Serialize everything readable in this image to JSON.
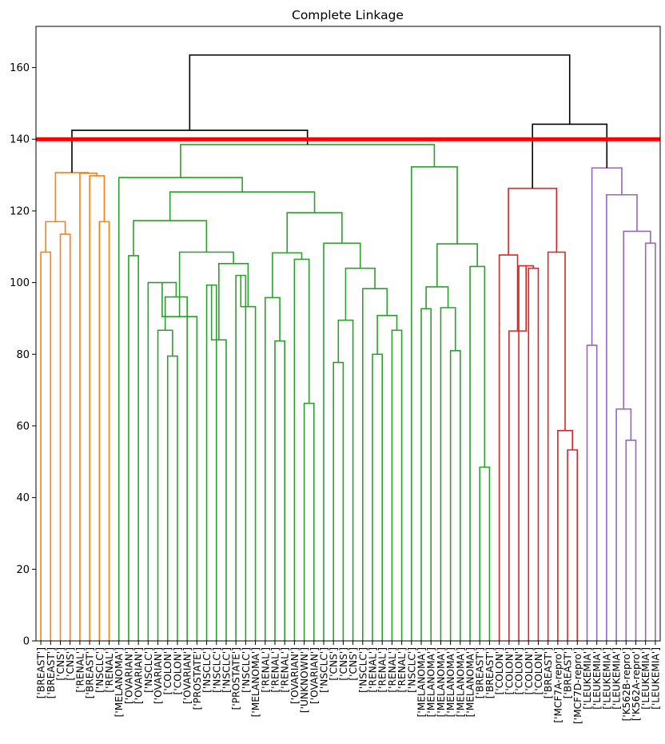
{
  "chart_data": {
    "type": "dendrogram",
    "title": "Complete Linkage",
    "xlabel": "",
    "ylabel": "",
    "ylim": [
      0,
      171.5
    ],
    "yticks": [
      0,
      20,
      40,
      60,
      80,
      100,
      120,
      140,
      160
    ],
    "grid": false,
    "cut_height": 140,
    "cut_color": "#ff0000",
    "colors": {
      "C0": "#000000",
      "C1": "#ff7f0e",
      "C2": "#2ca02c",
      "C3": "#d62728",
      "C4": "#9467bd"
    },
    "leaves": [
      "['BREAST']",
      "['BREAST']",
      "['CNS']",
      "['CNS']",
      "['RENAL']",
      "['BREAST']",
      "['NSCLC']",
      "['RENAL']",
      "['MELANOMA']",
      "['OVARIAN']",
      "['OVARIAN']",
      "['NSCLC']",
      "['OVARIAN']",
      "['COLON']",
      "['COLON']",
      "['OVARIAN']",
      "['PROSTATE']",
      "['NSCLC']",
      "['NSCLC']",
      "['NSCLC']",
      "['PROSTATE']",
      "['NSCLC']",
      "['MELANOMA']",
      "['RENAL']",
      "['RENAL']",
      "['RENAL']",
      "['OVARIAN']",
      "['UNKNOWN']",
      "['OVARIAN']",
      "['NSCLC']",
      "['CNS']",
      "['CNS']",
      "['CNS']",
      "['NSCLC']",
      "['RENAL']",
      "['RENAL']",
      "['RENAL']",
      "['RENAL']",
      "['NSCLC']",
      "['MELANOMA']",
      "['MELANOMA']",
      "['MELANOMA']",
      "['MELANOMA']",
      "['MELANOMA']",
      "['MELANOMA']",
      "['BREAST']",
      "['BREAST']",
      "['COLON']",
      "['COLON']",
      "['COLON']",
      "['COLON']",
      "['COLON']",
      "['BREAST']",
      "['MCF7A-repro']",
      "['BREAST']",
      "['MCF7D-repro']",
      "['LEUKEMIA']",
      "['LEUKEMIA']",
      "['LEUKEMIA']",
      "['LEUKEMIA']",
      "['K562B-repro']",
      "['K562A-repro']",
      "['LEUKEMIA']",
      "['LEUKEMIA']"
    ],
    "links": [
      {
        "left": 0,
        "right": 1,
        "height": 108.5,
        "color": "C1"
      },
      {
        "left": 2,
        "right": 3,
        "height": 113.5,
        "color": "C1"
      },
      {
        "left": 64,
        "right": 65,
        "height": 117.0,
        "color": "C1"
      },
      {
        "left": 6,
        "right": 7,
        "height": 117.0,
        "color": "C1"
      },
      {
        "left": 5,
        "right": 67,
        "height": 129.8,
        "color": "C1"
      },
      {
        "left": 4,
        "right": 68,
        "height": 130.5,
        "color": "C1"
      },
      {
        "left": 66,
        "right": 69,
        "height": 130.7,
        "color": "C1"
      },
      {
        "left": 13,
        "right": 14,
        "height": 79.5,
        "color": "C2"
      },
      {
        "left": 12,
        "right": 71,
        "height": 86.7,
        "color": "C2"
      },
      {
        "left": 72,
        "right": 15,
        "height": 96.0,
        "color": "C2"
      },
      {
        "left": 11,
        "right": 73,
        "height": 100.0,
        "color": "C2"
      },
      {
        "left": 74,
        "right": 16,
        "height": 90.5,
        "color": "C2"
      },
      {
        "left": 17,
        "right": 18,
        "height": 99.3,
        "color": "C2"
      },
      {
        "left": 76,
        "right": 19,
        "height": 84.0,
        "color": "C2"
      },
      {
        "left": 20,
        "right": 21,
        "height": 102.0,
        "color": "C2"
      },
      {
        "left": 78,
        "right": 22,
        "height": 93.3,
        "color": "C2"
      },
      {
        "left": 77,
        "right": 79,
        "height": 105.3,
        "color": "C2"
      },
      {
        "left": 75,
        "right": 80,
        "height": 108.5,
        "color": "C2"
      },
      {
        "left": 9,
        "right": 10,
        "height": 107.5,
        "color": "C2"
      },
      {
        "left": 82,
        "right": 81,
        "height": 117.3,
        "color": "C2"
      },
      {
        "left": 24,
        "right": 25,
        "height": 83.7,
        "color": "C2"
      },
      {
        "left": 23,
        "right": 84,
        "height": 95.8,
        "color": "C2"
      },
      {
        "left": 27,
        "right": 28,
        "height": 66.3,
        "color": "C2"
      },
      {
        "left": 26,
        "right": 86,
        "height": 106.5,
        "color": "C2"
      },
      {
        "left": 85,
        "right": 87,
        "height": 108.3,
        "color": "C2"
      },
      {
        "left": 30,
        "right": 31,
        "height": 77.7,
        "color": "C2"
      },
      {
        "left": 89,
        "right": 32,
        "height": 89.5,
        "color": "C2"
      },
      {
        "left": 34,
        "right": 35,
        "height": 80.0,
        "color": "C2"
      },
      {
        "left": 36,
        "right": 37,
        "height": 86.7,
        "color": "C2"
      },
      {
        "left": 91,
        "right": 92,
        "height": 90.8,
        "color": "C2"
      },
      {
        "left": 33,
        "right": 93,
        "height": 98.3,
        "color": "C2"
      },
      {
        "left": 90,
        "right": 94,
        "height": 104.0,
        "color": "C2"
      },
      {
        "left": 29,
        "right": 95,
        "height": 111.0,
        "color": "C2"
      },
      {
        "left": 88,
        "right": 96,
        "height": 119.5,
        "color": "C2"
      },
      {
        "left": 83,
        "right": 97,
        "height": 125.3,
        "color": "C2"
      },
      {
        "left": 8,
        "right": 98,
        "height": 129.3,
        "color": "C2"
      },
      {
        "left": 42,
        "right": 43,
        "height": 81.0,
        "color": "C2"
      },
      {
        "left": 41,
        "right": 100,
        "height": 93.0,
        "color": "C2"
      },
      {
        "left": 39,
        "right": 40,
        "height": 92.7,
        "color": "C2"
      },
      {
        "left": 102,
        "right": 101,
        "height": 98.8,
        "color": "C2"
      },
      {
        "left": 45,
        "right": 46,
        "height": 48.5,
        "color": "C2"
      },
      {
        "left": 44,
        "right": 104,
        "height": 104.5,
        "color": "C2"
      },
      {
        "left": 103,
        "right": 105,
        "height": 110.8,
        "color": "C2"
      },
      {
        "left": 38,
        "right": 106,
        "height": 132.3,
        "color": "C2"
      },
      {
        "left": 99,
        "right": 107,
        "height": 138.5,
        "color": "C2"
      },
      {
        "left": 70,
        "right": 108,
        "height": 142.5,
        "color": "C0"
      },
      {
        "left": 50,
        "right": 51,
        "height": 104.0,
        "color": "C3"
      },
      {
        "left": 49,
        "right": 110,
        "height": 104.7,
        "color": "C3"
      },
      {
        "left": 48,
        "right": 111,
        "height": 86.5,
        "color": "C3"
      },
      {
        "left": 47,
        "right": 112,
        "height": 107.7,
        "color": "C3"
      },
      {
        "left": 54,
        "right": 55,
        "height": 53.3,
        "color": "C3"
      },
      {
        "left": 53,
        "right": 114,
        "height": 58.7,
        "color": "C3"
      },
      {
        "left": 52,
        "right": 115,
        "height": 108.5,
        "color": "C3"
      },
      {
        "left": 113,
        "right": 116,
        "height": 126.3,
        "color": "C3"
      },
      {
        "left": 56,
        "right": 57,
        "height": 82.5,
        "color": "C4"
      },
      {
        "left": 60,
        "right": 61,
        "height": 56.0,
        "color": "C4"
      },
      {
        "left": 59,
        "right": 119,
        "height": 64.7,
        "color": "C4"
      },
      {
        "left": 62,
        "right": 63,
        "height": 111.0,
        "color": "C4"
      },
      {
        "left": 120,
        "right": 121,
        "height": 114.3,
        "color": "C4"
      },
      {
        "left": 58,
        "right": 122,
        "height": 124.5,
        "color": "C4"
      },
      {
        "left": 118,
        "right": 123,
        "height": 132.0,
        "color": "C4"
      },
      {
        "left": 117,
        "right": 124,
        "height": 144.2,
        "color": "C0"
      },
      {
        "left": 109,
        "right": 125,
        "height": 163.5,
        "color": "C0"
      }
    ]
  }
}
